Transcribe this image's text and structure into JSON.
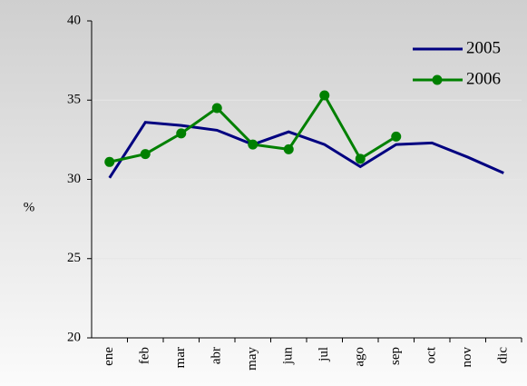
{
  "chart_data": {
    "type": "line",
    "y_label": "%",
    "categories": [
      "ene",
      "feb",
      "mar",
      "abr",
      "may",
      "jun",
      "jul",
      "ago",
      "sep",
      "oct",
      "nov",
      "dic"
    ],
    "series": [
      {
        "name": "2005",
        "color": "#000080",
        "marker": false,
        "values": [
          30.1,
          33.6,
          33.4,
          33.1,
          32.2,
          33.0,
          32.2,
          30.8,
          32.2,
          32.3,
          31.4,
          30.4
        ]
      },
      {
        "name": "2006",
        "color": "#008000",
        "marker": true,
        "values": [
          31.1,
          31.6,
          32.9,
          34.5,
          32.2,
          31.9,
          35.3,
          31.3,
          32.7,
          null,
          null,
          null
        ]
      }
    ],
    "ylim": [
      20,
      40
    ],
    "yticks": [
      20,
      25,
      30,
      35,
      40
    ],
    "grid": true,
    "legend": "upper right"
  }
}
